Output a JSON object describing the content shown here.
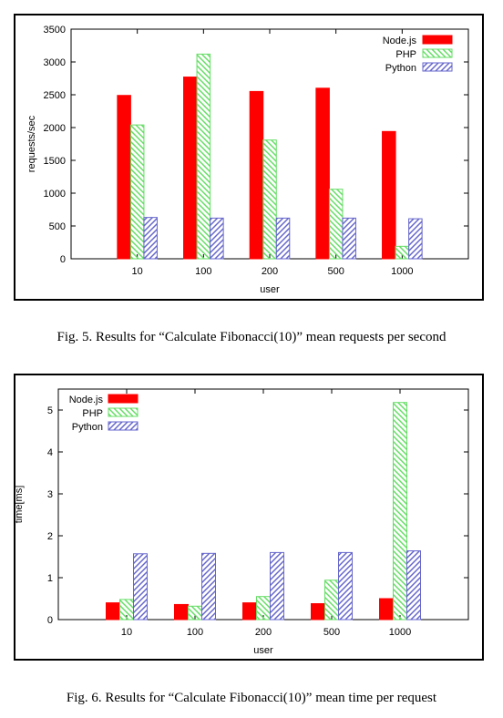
{
  "captions": {
    "fig5": "Fig. 5.   Results for “Calculate Fibonacci(10)” mean requests per second",
    "fig6": "Fig. 6.   Results for “Calculate Fibonacci(10)” mean time per request"
  },
  "colors": {
    "nodejs": "#ff0000",
    "php": "#66dd66",
    "python": "#6666cc"
  },
  "chart_data": [
    {
      "type": "bar",
      "title": "",
      "xlabel": "user",
      "ylabel": "requests/sec",
      "categories": [
        "10",
        "100",
        "200",
        "500",
        "1000"
      ],
      "ylim": [
        0,
        3500
      ],
      "yticks": [
        0,
        500,
        1000,
        1500,
        2000,
        2500,
        3000,
        3500
      ],
      "legend_position": "top-right",
      "grid": false,
      "series": [
        {
          "name": "Node.js",
          "values": [
            2490,
            2770,
            2550,
            2600,
            1940
          ]
        },
        {
          "name": "PHP",
          "values": [
            2040,
            3120,
            1810,
            1060,
            190
          ]
        },
        {
          "name": "Python",
          "values": [
            630,
            620,
            620,
            620,
            610
          ]
        }
      ]
    },
    {
      "type": "bar",
      "title": "",
      "xlabel": "user",
      "ylabel": "time[ms]",
      "categories": [
        "10",
        "100",
        "200",
        "500",
        "1000"
      ],
      "ylim": [
        0,
        5.5
      ],
      "yticks": [
        0,
        1,
        2,
        3,
        4,
        5
      ],
      "legend_position": "top-left",
      "grid": false,
      "series": [
        {
          "name": "Node.js",
          "values": [
            0.4,
            0.36,
            0.4,
            0.38,
            0.5
          ]
        },
        {
          "name": "PHP",
          "values": [
            0.48,
            0.32,
            0.55,
            0.94,
            5.18
          ]
        },
        {
          "name": "Python",
          "values": [
            1.57,
            1.58,
            1.6,
            1.6,
            1.64
          ]
        }
      ]
    }
  ]
}
